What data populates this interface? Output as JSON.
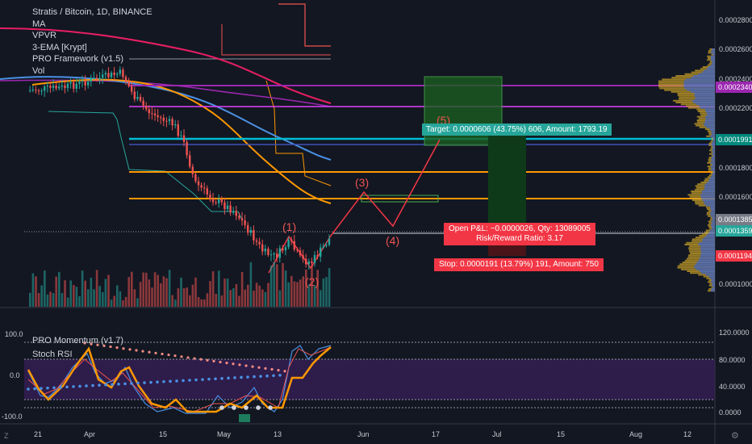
{
  "legend": {
    "symbol": "Stratis / Bitcoin, 1D, BINANCE",
    "indicators": [
      "MA",
      "VPVR",
      "3-EMA [Krypt]",
      "PRO Framework (v1.5)",
      "Vol"
    ]
  },
  "lower_legend": [
    "PRO Momentum (v1.7)",
    "Stoch RSI"
  ],
  "price_axis": [
    "0.0002800",
    "0.0002600",
    "0.0002400",
    "0.0002200",
    "0.0001800",
    "0.0001600",
    "0.0001000"
  ],
  "price_tags": [
    {
      "text": "0.0002340",
      "color": "#9c27b0"
    },
    {
      "text": "0.0001991",
      "color": "#00897b"
    },
    {
      "text": "0.0001385",
      "color": "#787b86"
    },
    {
      "text": "0.0001359",
      "color": "#26a69a"
    },
    {
      "text": "0.0001194",
      "color": "#f23645"
    }
  ],
  "momentum_axis": [
    "120.0000",
    "80.0000",
    "40.0000",
    "0.0000"
  ],
  "momentum_left_axis": [
    "100.0",
    "0.0",
    "-100.0"
  ],
  "time_axis": [
    "21",
    "Apr",
    "15",
    "May",
    "13",
    "Jun",
    "17",
    "Jul",
    "15",
    "Aug",
    "12"
  ],
  "waves": [
    "(1)",
    "(2)",
    "(3)",
    "(4)",
    "(5)"
  ],
  "position": {
    "target": "Target: 0.0000606 (43.75%) 606, Amount: 1793.19",
    "pnl": "Open P&L: −0.0000026, Qty: 13089005",
    "rr": "Risk/Reward Ratio: 3.17",
    "stop": "Stop: 0.0000191 (13.79%) 191, Amount: 750"
  },
  "corner": {
    "left": "Z",
    "right": "⚙"
  },
  "colors": {
    "up": "#26a69a",
    "down": "#ef5350",
    "wave": "#f23645",
    "bg": "#131722"
  }
}
